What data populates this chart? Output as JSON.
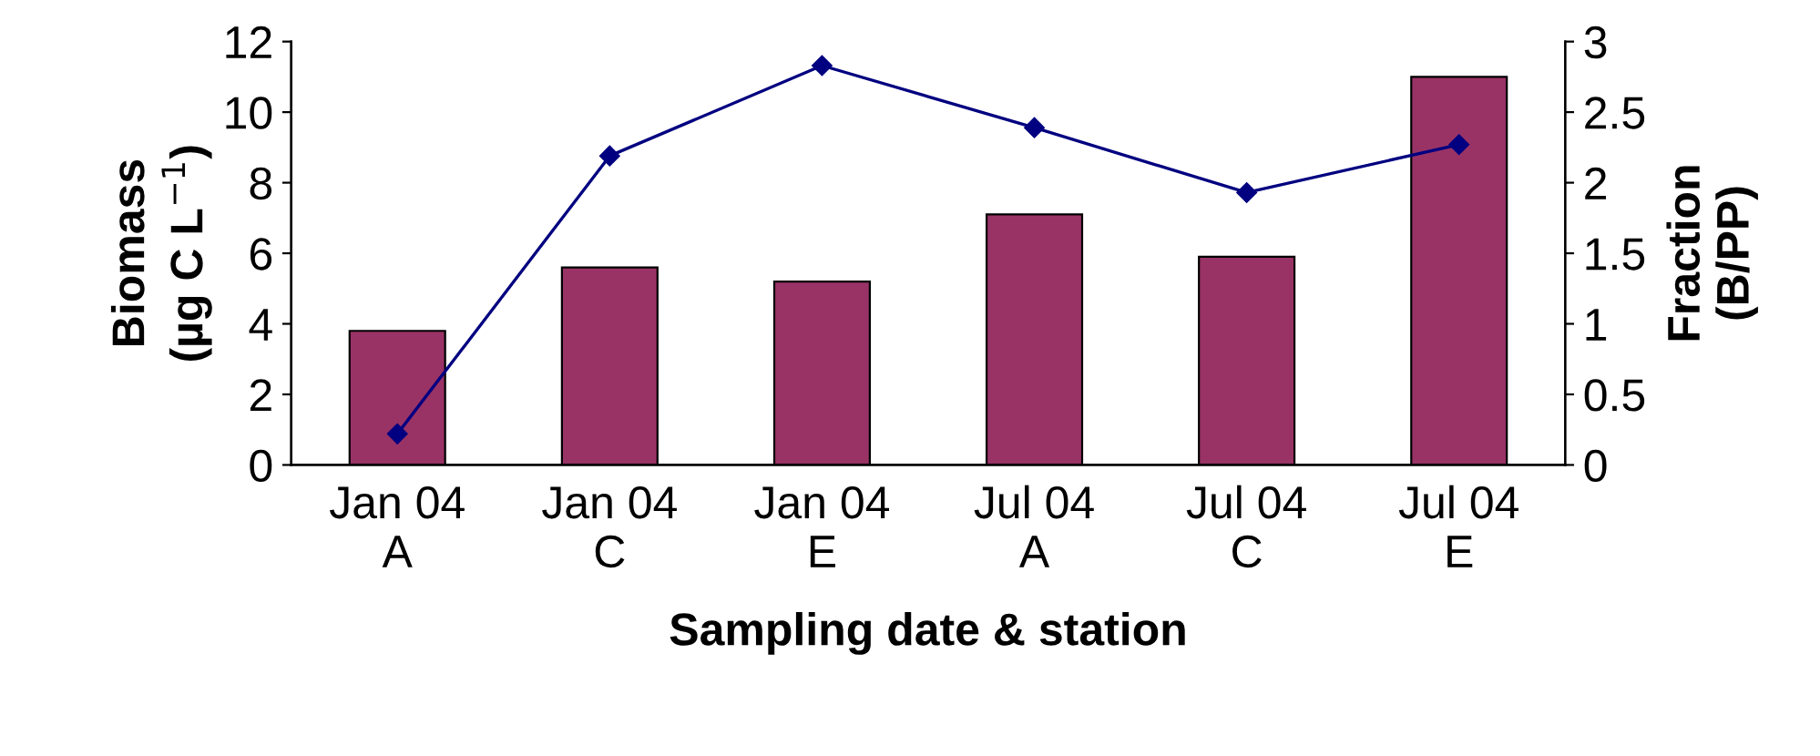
{
  "chart_data": {
    "type": "bar",
    "xlabel": "Sampling date & station",
    "ylabel": "Biomass\n(µg C L$^{−1}$)",
    "y2label": "Fraction\n(B/PP)",
    "categories": [
      "Jan 04\nA",
      "Jan 04\nC",
      "Jan 04\nE",
      "Jul 04\nA",
      "Jul 04\nC",
      "Jul 04\nE"
    ],
    "series": [
      {
        "color": "#993366",
        "values": [
          3.8,
          5.6,
          5.2,
          7.1,
          5.9,
          11.0
        ]
      },
      {
        "type": "line",
        "axis": "y2",
        "color": "#000080",
        "marker": "diamond",
        "values": [
          0.22,
          2.19,
          2.83,
          2.39,
          1.93,
          2.27
        ]
      }
    ],
    "ylim": [
      0,
      12
    ],
    "yticks": [
      0,
      2,
      4,
      6,
      8,
      10,
      12
    ],
    "y2lim": [
      0,
      3
    ],
    "y2ticks": [
      0,
      0.5,
      1,
      1.5,
      2,
      2.5,
      3
    ],
    "grid": false,
    "legend": false
  }
}
